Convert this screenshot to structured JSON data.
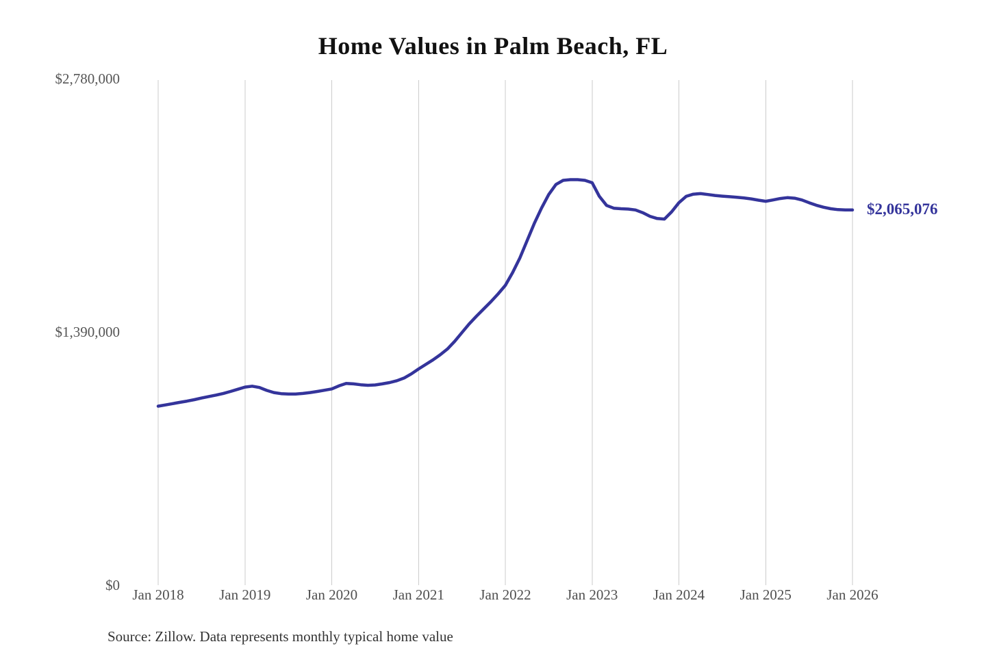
{
  "title": "Home Values in Palm Beach, FL",
  "source_note": "Source: Zillow. Data represents monthly typical home value",
  "end_label": "$2,065,076",
  "colors": {
    "line": "#34349b",
    "end_label_text": "#34349b",
    "grid": "#cbcbcb",
    "title_text": "#111111",
    "axis_text": "#555555",
    "source_text": "#333333",
    "background": "#ffffff"
  },
  "chart_data": {
    "type": "line",
    "title": "Home Values in Palm Beach, FL",
    "series_name": "Monthly typical home value",
    "xlabel": "",
    "ylabel": "",
    "ylim": [
      0,
      2780000
    ],
    "grid": "vertical-only",
    "legend": "none",
    "y_ticks": [
      {
        "label": "$2,780,000",
        "value": 2780000
      },
      {
        "label": "$1,390,000",
        "value": 1390000
      },
      {
        "label": "$0",
        "value": 0
      }
    ],
    "x_ticks": [
      "Jan 2018",
      "Jan 2019",
      "Jan 2020",
      "Jan 2021",
      "Jan 2022",
      "Jan 2023",
      "Jan 2024",
      "Jan 2025",
      "Jan 2026"
    ],
    "end_value": 2065076,
    "points": [
      [
        "2018-01",
        985000
      ],
      [
        "2018-02",
        992000
      ],
      [
        "2018-03",
        999000
      ],
      [
        "2018-04",
        1006000
      ],
      [
        "2018-05",
        1013000
      ],
      [
        "2018-06",
        1021000
      ],
      [
        "2018-07",
        1030000
      ],
      [
        "2018-08",
        1038000
      ],
      [
        "2018-09",
        1046000
      ],
      [
        "2018-10",
        1055000
      ],
      [
        "2018-11",
        1066000
      ],
      [
        "2018-12",
        1078000
      ],
      [
        "2019-01",
        1090000
      ],
      [
        "2019-02",
        1095000
      ],
      [
        "2019-03",
        1088000
      ],
      [
        "2019-04",
        1072000
      ],
      [
        "2019-05",
        1060000
      ],
      [
        "2019-06",
        1054000
      ],
      [
        "2019-07",
        1052000
      ],
      [
        "2019-08",
        1052000
      ],
      [
        "2019-09",
        1055000
      ],
      [
        "2019-10",
        1060000
      ],
      [
        "2019-11",
        1066000
      ],
      [
        "2019-12",
        1073000
      ],
      [
        "2020-01",
        1080000
      ],
      [
        "2020-02",
        1097000
      ],
      [
        "2020-03",
        1110000
      ],
      [
        "2020-04",
        1108000
      ],
      [
        "2020-05",
        1103000
      ],
      [
        "2020-06",
        1100000
      ],
      [
        "2020-07",
        1102000
      ],
      [
        "2020-08",
        1108000
      ],
      [
        "2020-09",
        1115000
      ],
      [
        "2020-10",
        1125000
      ],
      [
        "2020-11",
        1140000
      ],
      [
        "2020-12",
        1163000
      ],
      [
        "2021-01",
        1190000
      ],
      [
        "2021-02",
        1215000
      ],
      [
        "2021-03",
        1240000
      ],
      [
        "2021-04",
        1268000
      ],
      [
        "2021-05",
        1300000
      ],
      [
        "2021-06",
        1342000
      ],
      [
        "2021-07",
        1390000
      ],
      [
        "2021-08",
        1438000
      ],
      [
        "2021-09",
        1480000
      ],
      [
        "2021-10",
        1520000
      ],
      [
        "2021-11",
        1560000
      ],
      [
        "2021-12",
        1603000
      ],
      [
        "2022-01",
        1650000
      ],
      [
        "2022-02",
        1720000
      ],
      [
        "2022-03",
        1800000
      ],
      [
        "2022-04",
        1895000
      ],
      [
        "2022-05",
        1990000
      ],
      [
        "2022-06",
        2075000
      ],
      [
        "2022-07",
        2150000
      ],
      [
        "2022-08",
        2205000
      ],
      [
        "2022-09",
        2228000
      ],
      [
        "2022-10",
        2232000
      ],
      [
        "2022-11",
        2232000
      ],
      [
        "2022-12",
        2228000
      ],
      [
        "2023-01",
        2215000
      ],
      [
        "2023-02",
        2140000
      ],
      [
        "2023-03",
        2090000
      ],
      [
        "2023-04",
        2075000
      ],
      [
        "2023-05",
        2072000
      ],
      [
        "2023-06",
        2070000
      ],
      [
        "2023-07",
        2065000
      ],
      [
        "2023-08",
        2050000
      ],
      [
        "2023-09",
        2030000
      ],
      [
        "2023-10",
        2018000
      ],
      [
        "2023-11",
        2015000
      ],
      [
        "2023-12",
        2055000
      ],
      [
        "2024-01",
        2105000
      ],
      [
        "2024-02",
        2140000
      ],
      [
        "2024-03",
        2152000
      ],
      [
        "2024-04",
        2155000
      ],
      [
        "2024-05",
        2150000
      ],
      [
        "2024-06",
        2145000
      ],
      [
        "2024-07",
        2141000
      ],
      [
        "2024-08",
        2138000
      ],
      [
        "2024-09",
        2135000
      ],
      [
        "2024-10",
        2131000
      ],
      [
        "2024-11",
        2126000
      ],
      [
        "2024-12",
        2119000
      ],
      [
        "2025-01",
        2113000
      ],
      [
        "2025-02",
        2120000
      ],
      [
        "2025-03",
        2128000
      ],
      [
        "2025-04",
        2133000
      ],
      [
        "2025-05",
        2130000
      ],
      [
        "2025-06",
        2120000
      ],
      [
        "2025-07",
        2105000
      ],
      [
        "2025-08",
        2091000
      ],
      [
        "2025-09",
        2080000
      ],
      [
        "2025-10",
        2072000
      ],
      [
        "2025-11",
        2067000
      ],
      [
        "2025-12",
        2065000
      ],
      [
        "2026-01",
        2065076
      ]
    ]
  },
  "layout_geometry_note": ""
}
